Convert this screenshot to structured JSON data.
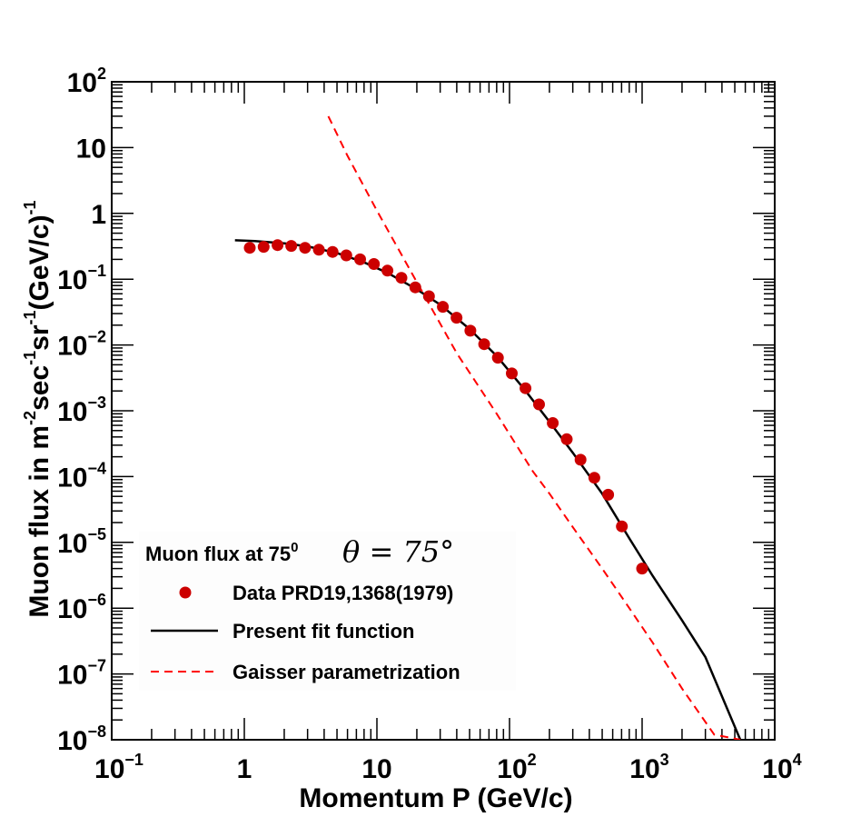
{
  "chart_data": {
    "type": "line",
    "x_scale": "log",
    "y_scale": "log",
    "xlim": [
      0.1,
      10000
    ],
    "ylim": [
      1e-08,
      100
    ],
    "xlabel": "Momentum P (GeV/c)",
    "ylabel": "Muon flux in m-2sec-1sr-1(GeV/c)-1",
    "ylabel_parts": [
      "Muon flux in m",
      "-2",
      "sec",
      "-1",
      "sr",
      "-1",
      "(GeV/c)",
      "-1"
    ],
    "x_ticks": [
      {
        "value": 0.1,
        "base": "10",
        "exp": "−1"
      },
      {
        "value": 1,
        "base": "1",
        "exp": ""
      },
      {
        "value": 10,
        "base": "10",
        "exp": ""
      },
      {
        "value": 100,
        "base": "10",
        "exp": "2"
      },
      {
        "value": 1000,
        "base": "10",
        "exp": "3"
      },
      {
        "value": 10000,
        "base": "10",
        "exp": "4"
      }
    ],
    "y_ticks": [
      {
        "value": 1e-08,
        "base": "10",
        "exp": "−8"
      },
      {
        "value": 1e-07,
        "base": "10",
        "exp": "−7"
      },
      {
        "value": 1e-06,
        "base": "10",
        "exp": "−6"
      },
      {
        "value": 1e-05,
        "base": "10",
        "exp": "−5"
      },
      {
        "value": 0.0001,
        "base": "10",
        "exp": "−4"
      },
      {
        "value": 0.001,
        "base": "10",
        "exp": "−3"
      },
      {
        "value": 0.01,
        "base": "10",
        "exp": "−2"
      },
      {
        "value": 0.1,
        "base": "10",
        "exp": "−1"
      },
      {
        "value": 1,
        "base": "1",
        "exp": ""
      },
      {
        "value": 10,
        "base": "10",
        "exp": ""
      },
      {
        "value": 100,
        "base": "10",
        "exp": "2"
      }
    ],
    "legend": {
      "title": "Muon flux at 75",
      "title_sup": "0",
      "title_math": "θ = 75°",
      "placement": "bottom-left",
      "entries": [
        {
          "label": "Data PRD19,1368(1979)",
          "kind": "marker",
          "color": "#cc0000"
        },
        {
          "label": "Present fit function",
          "kind": "solid-line",
          "color": "#000000"
        },
        {
          "label": "Gaisser parametrization",
          "kind": "dashed-line",
          "color": "#ff0000"
        }
      ]
    },
    "series": [
      {
        "name": "Data PRD19,1368(1979)",
        "style": "marker",
        "color": "#cc0000",
        "points": [
          [
            1.1,
            0.3
          ],
          [
            1.4,
            0.31
          ],
          [
            1.78,
            0.33
          ],
          [
            2.26,
            0.32
          ],
          [
            2.87,
            0.3
          ],
          [
            3.65,
            0.28
          ],
          [
            4.63,
            0.26
          ],
          [
            5.88,
            0.23
          ],
          [
            7.47,
            0.2
          ],
          [
            9.49,
            0.17
          ],
          [
            12.0,
            0.135
          ],
          [
            15.3,
            0.105
          ],
          [
            19.5,
            0.075
          ],
          [
            24.7,
            0.055
          ],
          [
            31.4,
            0.038
          ],
          [
            39.9,
            0.026
          ],
          [
            50.7,
            0.0165
          ],
          [
            64.4,
            0.0103
          ],
          [
            81.7,
            0.0064
          ],
          [
            104,
            0.0037
          ],
          [
            132,
            0.0022
          ],
          [
            167,
            0.00125
          ],
          [
            212,
            0.00065
          ],
          [
            270,
            0.00037
          ],
          [
            343,
            0.00018
          ],
          [
            436,
            9.6e-05
          ],
          [
            554,
            5.3e-05
          ],
          [
            704,
            1.75e-05
          ],
          [
            1000,
            4e-06
          ]
        ]
      },
      {
        "name": "Present fit function",
        "style": "solid",
        "color": "#000000",
        "points": [
          [
            0.85,
            0.39
          ],
          [
            1.2,
            0.38
          ],
          [
            2,
            0.35
          ],
          [
            3,
            0.315
          ],
          [
            5,
            0.25
          ],
          [
            8,
            0.18
          ],
          [
            12,
            0.125
          ],
          [
            20,
            0.07
          ],
          [
            30,
            0.041
          ],
          [
            50,
            0.0175
          ],
          [
            80,
            0.0068
          ],
          [
            130,
            0.0021
          ],
          [
            200,
            0.00068
          ],
          [
            300,
            0.00023
          ],
          [
            500,
            5.5e-05
          ],
          [
            800,
            1.15e-05
          ],
          [
            1200,
            3.1e-06
          ],
          [
            2000,
            6.5e-07
          ],
          [
            3000,
            1.8e-07
          ],
          [
            5500,
            1e-08
          ]
        ]
      },
      {
        "name": "Gaisser parametrization",
        "style": "dashed",
        "color": "#ff0000",
        "points": [
          [
            4.3,
            30
          ],
          [
            6,
            7.5
          ],
          [
            10,
            1.1
          ],
          [
            20,
            0.09
          ],
          [
            40,
            0.0075
          ],
          [
            80,
            0.0009
          ],
          [
            150,
            0.00012
          ],
          [
            200,
            5.5e-05
          ],
          [
            300,
            1.7e-05
          ],
          [
            500,
            4e-06
          ],
          [
            800,
            1e-06
          ],
          [
            1200,
            3e-07
          ],
          [
            2000,
            6e-08
          ],
          [
            3500,
            1.2e-08
          ],
          [
            5500,
            1e-08
          ]
        ]
      }
    ]
  },
  "colors": {
    "data_marker": "#cc0000",
    "fit_line": "#000000",
    "gaisser_line": "#ff0000",
    "frame": "#000000",
    "legend_bg": "#fdfdfd"
  }
}
